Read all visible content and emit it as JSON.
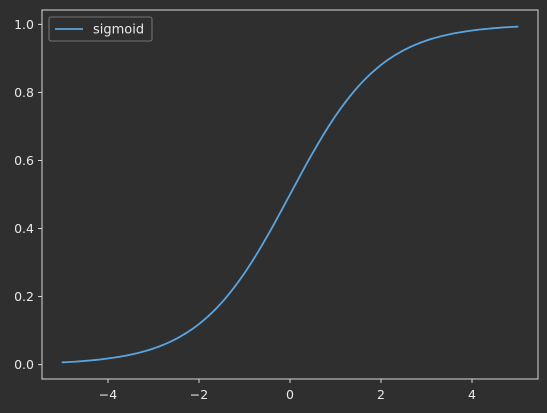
{
  "chart_data": {
    "type": "line",
    "title": "",
    "xlabel": "",
    "ylabel": "",
    "xlim": [
      -5.45,
      5.45
    ],
    "ylim": [
      -0.0423,
      1.0423
    ],
    "x_ticks": [
      -4,
      -2,
      0,
      2,
      4
    ],
    "x_tick_labels": [
      "−4",
      "−2",
      "0",
      "2",
      "4"
    ],
    "y_ticks": [
      0.0,
      0.2,
      0.4,
      0.6,
      0.8,
      1.0
    ],
    "y_tick_labels": [
      "0.0",
      "0.2",
      "0.4",
      "0.6",
      "0.8",
      "1.0"
    ],
    "grid": false,
    "legend_position": "upper-left",
    "series": [
      {
        "name": "sigmoid",
        "color": "#5aa5e0",
        "x": [
          -5.0,
          -4.5,
          -4.0,
          -3.5,
          -3.0,
          -2.5,
          -2.0,
          -1.5,
          -1.0,
          -0.5,
          0.0,
          0.5,
          1.0,
          1.5,
          2.0,
          2.5,
          3.0,
          3.5,
          4.0,
          4.5,
          5.0
        ],
        "y": [
          0.0067,
          0.011,
          0.018,
          0.0293,
          0.0474,
          0.0759,
          0.1192,
          0.1824,
          0.2689,
          0.3775,
          0.5,
          0.6225,
          0.7311,
          0.8176,
          0.8808,
          0.9241,
          0.9526,
          0.9707,
          0.982,
          0.989,
          0.9933
        ]
      }
    ],
    "colors": {
      "background": "#2f2f2f",
      "axes": "#d8d8d8",
      "text": "#e8e8e8"
    }
  }
}
